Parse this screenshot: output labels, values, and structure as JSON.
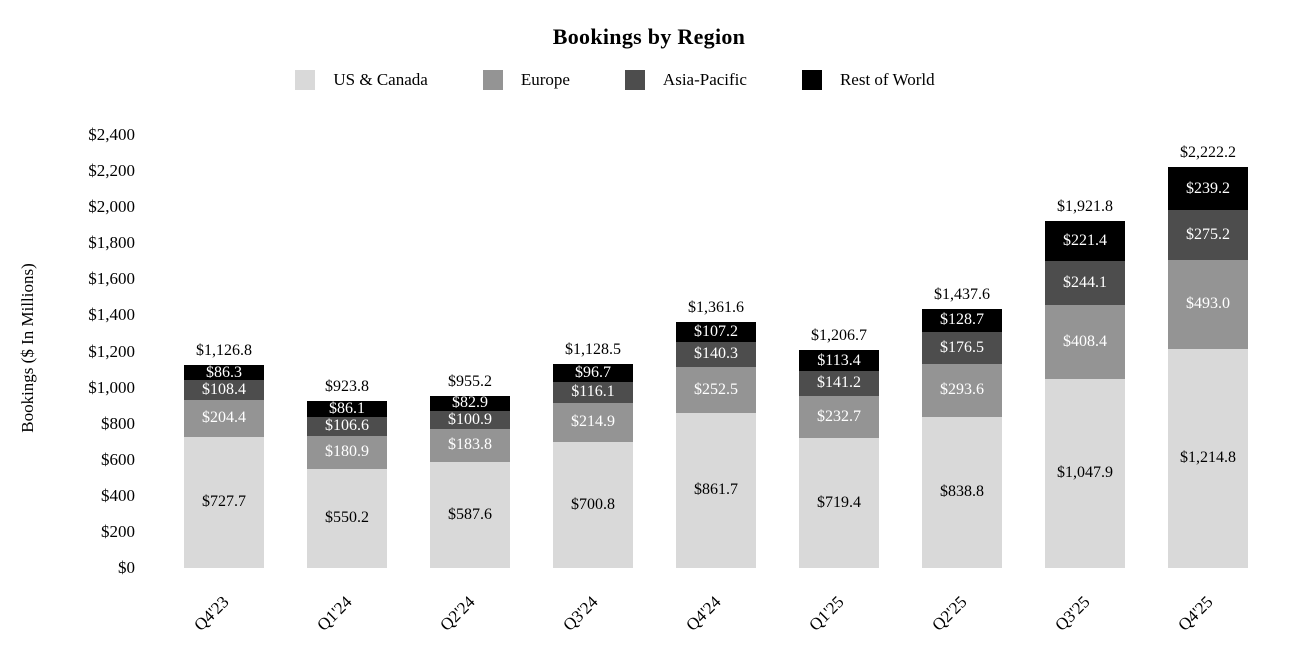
{
  "title": "Bookings by Region",
  "y_axis": {
    "label": "Bookings ($ In Millions)"
  },
  "chart_data": {
    "type": "bar",
    "stacked": true,
    "title": "Bookings by Region",
    "xlabel": "",
    "ylabel": "Bookings ($ In Millions)",
    "ylim": [
      0,
      2400
    ],
    "ytick_step": 200,
    "ytick_labels": [
      "$0",
      "$200",
      "$400",
      "$600",
      "$800",
      "$1,000",
      "$1,200",
      "$1,400",
      "$1,600",
      "$1,800",
      "$2,000",
      "$2,200",
      "$2,400"
    ],
    "grid": false,
    "legend_position": "top-center",
    "categories": [
      "Q4'23",
      "Q1'24",
      "Q2'24",
      "Q3'24",
      "Q4'24",
      "Q1'25",
      "Q2'25",
      "Q3'25",
      "Q4'25"
    ],
    "series": [
      {
        "name": "US & Canada",
        "color": "#d9d9d9",
        "label_color": "#000000",
        "values": [
          727.7,
          550.2,
          587.6,
          700.8,
          861.7,
          719.4,
          838.8,
          1047.9,
          1214.8
        ],
        "labels": [
          "$727.7",
          "$550.2",
          "$587.6",
          "$700.8",
          "$861.7",
          "$719.4",
          "$838.8",
          "$1,047.9",
          "$1,214.8"
        ]
      },
      {
        "name": "Europe",
        "color": "#949494",
        "label_color": "#ffffff",
        "values": [
          204.4,
          180.9,
          183.8,
          214.9,
          252.5,
          232.7,
          293.6,
          408.4,
          493.0
        ],
        "labels": [
          "$204.4",
          "$180.9",
          "$183.8",
          "$214.9",
          "$252.5",
          "$232.7",
          "$293.6",
          "$408.4",
          "$493.0"
        ]
      },
      {
        "name": "Asia-Pacific",
        "color": "#4d4d4d",
        "label_color": "#ffffff",
        "values": [
          108.4,
          106.6,
          100.9,
          116.1,
          140.3,
          141.2,
          176.5,
          244.1,
          275.2
        ],
        "labels": [
          "$108.4",
          "$106.6",
          "$100.9",
          "$116.1",
          "$140.3",
          "$141.2",
          "$176.5",
          "$244.1",
          "$275.2"
        ]
      },
      {
        "name": "Rest of World",
        "color": "#000000",
        "label_color": "#ffffff",
        "values": [
          86.3,
          86.1,
          82.9,
          96.7,
          107.2,
          113.4,
          128.7,
          221.4,
          239.2
        ],
        "labels": [
          "$86.3",
          "$86.1",
          "$82.9",
          "$96.7",
          "$107.2",
          "$113.4",
          "$128.7",
          "$221.4",
          "$239.2"
        ]
      }
    ],
    "totals": [
      1126.8,
      923.8,
      955.2,
      1128.5,
      1361.6,
      1206.7,
      1437.6,
      1921.8,
      2222.2
    ],
    "total_labels": [
      "$1,126.8",
      "$923.8",
      "$955.2",
      "$1,128.5",
      "$1,361.6",
      "$1,206.7",
      "$1,437.6",
      "$1,921.8",
      "$2,222.2"
    ]
  }
}
